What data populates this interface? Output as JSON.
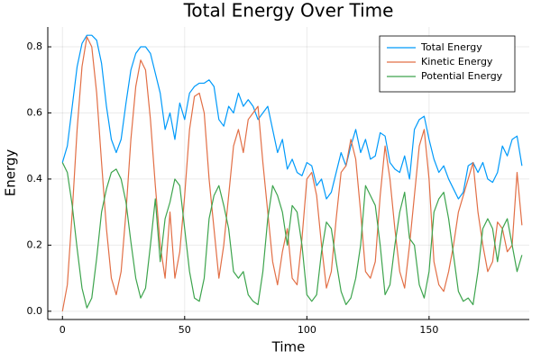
{
  "chart_data": {
    "type": "line",
    "title": "Total Energy Over Time",
    "x_label": "Time",
    "y_label": "Energy",
    "x": [
      0,
      2,
      4,
      6,
      8,
      10,
      12,
      14,
      16,
      18,
      20,
      22,
      24,
      26,
      28,
      30,
      32,
      34,
      36,
      38,
      40,
      42,
      44,
      46,
      48,
      50,
      52,
      54,
      56,
      58,
      60,
      62,
      64,
      66,
      68,
      70,
      72,
      74,
      76,
      78,
      80,
      82,
      84,
      86,
      88,
      90,
      92,
      94,
      96,
      98,
      100,
      102,
      104,
      106,
      108,
      110,
      112,
      114,
      116,
      118,
      120,
      122,
      124,
      126,
      128,
      130,
      132,
      134,
      136,
      138,
      140,
      142,
      144,
      146,
      148,
      150,
      152,
      154,
      156,
      158,
      160,
      162,
      164,
      166,
      168,
      170,
      172,
      174,
      176,
      178,
      180,
      182,
      184,
      186,
      188
    ],
    "series": [
      {
        "name": "Total Energy",
        "color": "#009afa",
        "values": [
          0.45,
          0.5,
          0.62,
          0.74,
          0.81,
          0.835,
          0.835,
          0.82,
          0.75,
          0.62,
          0.52,
          0.48,
          0.52,
          0.63,
          0.73,
          0.78,
          0.8,
          0.8,
          0.78,
          0.72,
          0.66,
          0.55,
          0.6,
          0.52,
          0.63,
          0.58,
          0.66,
          0.68,
          0.69,
          0.69,
          0.7,
          0.68,
          0.58,
          0.56,
          0.62,
          0.6,
          0.66,
          0.62,
          0.64,
          0.62,
          0.58,
          0.6,
          0.62,
          0.55,
          0.48,
          0.52,
          0.43,
          0.46,
          0.42,
          0.41,
          0.45,
          0.44,
          0.38,
          0.4,
          0.34,
          0.36,
          0.42,
          0.48,
          0.44,
          0.5,
          0.55,
          0.48,
          0.52,
          0.46,
          0.47,
          0.54,
          0.53,
          0.45,
          0.43,
          0.42,
          0.47,
          0.4,
          0.55,
          0.58,
          0.59,
          0.52,
          0.46,
          0.42,
          0.44,
          0.4,
          0.37,
          0.34,
          0.36,
          0.44,
          0.45,
          0.42,
          0.45,
          0.4,
          0.39,
          0.42,
          0.5,
          0.47,
          0.52,
          0.53,
          0.44
        ]
      },
      {
        "name": "Kinetic Energy",
        "color": "#e26f46",
        "values": [
          0.0,
          0.08,
          0.3,
          0.55,
          0.74,
          0.83,
          0.8,
          0.66,
          0.45,
          0.25,
          0.1,
          0.05,
          0.12,
          0.3,
          0.52,
          0.68,
          0.76,
          0.73,
          0.58,
          0.38,
          0.2,
          0.1,
          0.3,
          0.1,
          0.18,
          0.35,
          0.55,
          0.65,
          0.66,
          0.6,
          0.4,
          0.25,
          0.1,
          0.2,
          0.35,
          0.5,
          0.55,
          0.48,
          0.58,
          0.6,
          0.62,
          0.45,
          0.3,
          0.15,
          0.08,
          0.18,
          0.25,
          0.1,
          0.08,
          0.22,
          0.4,
          0.42,
          0.35,
          0.2,
          0.07,
          0.12,
          0.28,
          0.42,
          0.44,
          0.52,
          0.46,
          0.3,
          0.12,
          0.1,
          0.15,
          0.35,
          0.5,
          0.4,
          0.25,
          0.12,
          0.07,
          0.2,
          0.35,
          0.5,
          0.55,
          0.4,
          0.15,
          0.08,
          0.06,
          0.12,
          0.2,
          0.3,
          0.35,
          0.4,
          0.45,
          0.3,
          0.2,
          0.12,
          0.15,
          0.27,
          0.25,
          0.18,
          0.2,
          0.42,
          0.26
        ]
      },
      {
        "name": "Potential Energy",
        "color": "#3da44d",
        "values": [
          0.45,
          0.42,
          0.32,
          0.19,
          0.07,
          0.01,
          0.04,
          0.16,
          0.3,
          0.37,
          0.42,
          0.43,
          0.4,
          0.33,
          0.21,
          0.1,
          0.04,
          0.07,
          0.2,
          0.34,
          0.15,
          0.28,
          0.33,
          0.4,
          0.38,
          0.25,
          0.12,
          0.04,
          0.03,
          0.1,
          0.28,
          0.35,
          0.38,
          0.32,
          0.25,
          0.12,
          0.1,
          0.12,
          0.05,
          0.03,
          0.02,
          0.12,
          0.28,
          0.38,
          0.35,
          0.3,
          0.2,
          0.32,
          0.3,
          0.2,
          0.05,
          0.03,
          0.05,
          0.18,
          0.27,
          0.25,
          0.15,
          0.06,
          0.02,
          0.04,
          0.1,
          0.2,
          0.38,
          0.35,
          0.32,
          0.2,
          0.05,
          0.08,
          0.2,
          0.3,
          0.36,
          0.22,
          0.2,
          0.08,
          0.04,
          0.12,
          0.3,
          0.34,
          0.36,
          0.28,
          0.17,
          0.06,
          0.03,
          0.04,
          0.02,
          0.12,
          0.25,
          0.28,
          0.25,
          0.15,
          0.25,
          0.28,
          0.2,
          0.12,
          0.17
        ]
      }
    ],
    "xlim": [
      -6,
      191
    ],
    "ylim": [
      -0.025,
      0.86
    ],
    "xticks": [
      0,
      50,
      100,
      150
    ],
    "yticks": [
      {
        "value": 0,
        "label": "0.0"
      },
      0.2,
      0.4,
      0.6,
      0.8
    ],
    "grid": true,
    "legend": "top-right"
  }
}
